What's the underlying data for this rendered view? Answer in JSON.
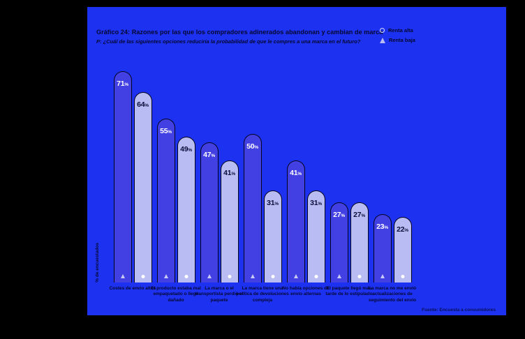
{
  "header": {
    "title": "Gráfico 24: Razones por las que los compradores adinerados abandonan y cambian de marca",
    "subtitle": "P: ¿Cuál de las siguientes opciones reduciría la probabilidad de que le compres a una marca en el futuro?"
  },
  "footer": {
    "source": "Fuente: Encuesta a consumidores"
  },
  "colors": {
    "panel_background": "#1d31f1",
    "dark_bar": "#423fe3",
    "light_bar": "#b9bcf2",
    "text_dark": "#05082e",
    "bar_outline": "#03041a"
  },
  "chart_data": {
    "type": "bar",
    "title": "Gráfico 24: Razones por las que los compradores adinerados abandonan y cambian de marca",
    "subtitle": "P: ¿Cuál de las siguientes opciones reduciría la probabilidad de que le compres a una marca en el futuro?",
    "xlabel": "",
    "ylabel": "% de encuestados",
    "ylim": [
      0,
      75
    ],
    "grid": false,
    "legend_position": "top-right",
    "value_suffix": "%",
    "legend": [
      {
        "label": "Renta alta",
        "marker": "circle"
      },
      {
        "label": "Renta baja",
        "marker": "triangle"
      }
    ],
    "categories": [
      "Costes de envío altos",
      "El producto estaba mal empaquetado o llegó dañado",
      "La marca o el transportista perdió el paquete",
      "La marca tiene una política de devoluciones compleja",
      "No había opciones de envío alternas",
      "El paquete llegó más tarde de lo estipulado",
      "La marca no me envió actualizaciones de seguimiento del envío"
    ],
    "series": [
      {
        "name": "Renta baja",
        "marker": "triangle",
        "color": "#423fe3",
        "values": [
          71,
          55,
          47,
          50,
          41,
          27,
          23
        ]
      },
      {
        "name": "Renta alta",
        "marker": "circle",
        "color": "#b9bcf2",
        "values": [
          64,
          49,
          41,
          31,
          31,
          27,
          22
        ]
      }
    ]
  }
}
